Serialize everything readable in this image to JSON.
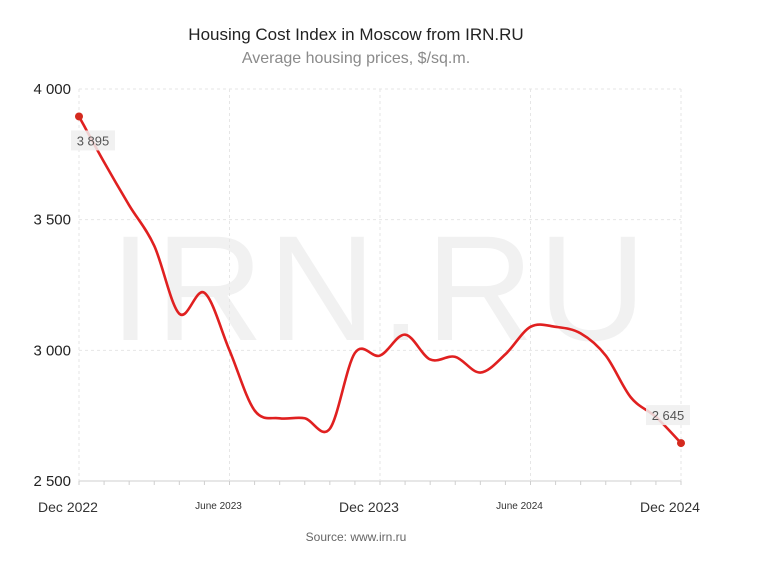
{
  "chart_data": {
    "type": "line",
    "title": "Housing Cost Index in Moscow from IRN.RU",
    "subtitle": "Average housing prices, $/sq.m.",
    "source": "Source: www.irn.ru",
    "watermark": "IRN.RU",
    "ylim": [
      2500,
      4000
    ],
    "yticks": [
      4000,
      3500,
      3000,
      2500
    ],
    "ytick_labels": [
      "4 000",
      "3 500",
      "3 000",
      "2 500"
    ],
    "x_start": "2022-12",
    "x_end": "2024-12",
    "xticks": [
      {
        "date": "2022-12",
        "label": "Dec 2022",
        "major": true
      },
      {
        "date": "2023-06",
        "label": "June 2023",
        "major": false
      },
      {
        "date": "2023-12",
        "label": "Dec 2023",
        "major": true
      },
      {
        "date": "2024-06",
        "label": "June 2024",
        "major": false
      },
      {
        "date": "2024-12",
        "label": "Dec 2024",
        "major": true
      }
    ],
    "grid": true,
    "line_color": "#e02020",
    "marker_color": "#d42a1e",
    "series": [
      {
        "points": [
          [
            "2022-12",
            3895
          ],
          [
            "2023-01",
            3720
          ],
          [
            "2023-02",
            3555
          ],
          [
            "2023-03",
            3400
          ],
          [
            "2023-04",
            3140
          ],
          [
            "2023-05",
            3220
          ],
          [
            "2023-06",
            3000
          ],
          [
            "2023-07",
            2770
          ],
          [
            "2023-08",
            2740
          ],
          [
            "2023-09",
            2740
          ],
          [
            "2023-10",
            2700
          ],
          [
            "2023-11",
            2990
          ],
          [
            "2023-12",
            2980
          ],
          [
            "2024-01",
            3060
          ],
          [
            "2024-02",
            2965
          ],
          [
            "2024-03",
            2975
          ],
          [
            "2024-04",
            2915
          ],
          [
            "2024-05",
            2985
          ],
          [
            "2024-06",
            3090
          ],
          [
            "2024-07",
            3090
          ],
          [
            "2024-08",
            3065
          ],
          [
            "2024-09",
            2980
          ],
          [
            "2024-10",
            2820
          ],
          [
            "2024-11",
            2745
          ],
          [
            "2024-12",
            2645
          ]
        ]
      }
    ],
    "annotations": [
      {
        "date": "2022-12",
        "value": 3895,
        "label": "3 895",
        "position": "below"
      },
      {
        "date": "2024-12",
        "value": 2645,
        "label": "2 645",
        "position": "above-left"
      }
    ]
  }
}
